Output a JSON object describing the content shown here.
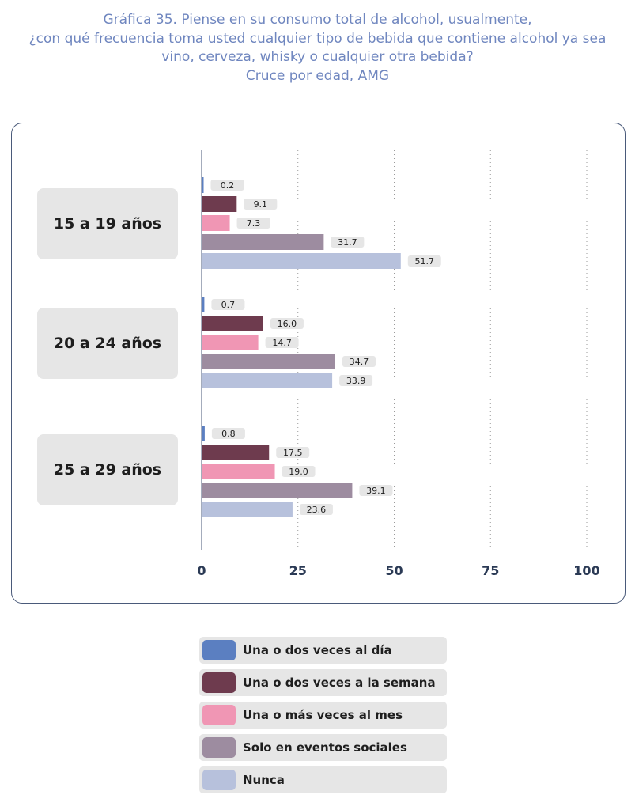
{
  "title_lines": [
    "Gráfica 35. Piense en su consumo total de alcohol, usualmente,",
    "¿con qué frecuencia toma usted cualquier tipo de bebida que contiene alcohol ya sea",
    "vino, cerveza, whisky o cualquier otra bebida?",
    "Cruce por edad, AMG"
  ],
  "chart_data": {
    "type": "bar",
    "orientation": "horizontal",
    "title": "Gráfica 35. Piense en su consumo total de alcohol, usualmente, ¿con qué frecuencia toma usted cualquier tipo de bebida que contiene alcohol ya sea vino, cerveza, whisky o cualquier otra bebida? Cruce por edad, AMG",
    "categories": [
      "15 a 19 años",
      "20 a 24 años",
      "25 a 29 años"
    ],
    "series": [
      {
        "name": "Una o dos veces al día",
        "color": "#5b7fc1",
        "values": [
          0.2,
          0.7,
          0.8
        ],
        "labels": [
          "0.2",
          "0.7",
          "0.8"
        ]
      },
      {
        "name": "Una o dos veces a la semana",
        "color": "#6e3b4e",
        "values": [
          9.1,
          16.0,
          17.5
        ],
        "labels": [
          "9.1",
          "16.0",
          "17.5"
        ]
      },
      {
        "name": "Una o más veces al mes",
        "color": "#f096b4",
        "values": [
          7.3,
          14.7,
          19.0
        ],
        "labels": [
          "7.3",
          "14.7",
          "19.0"
        ]
      },
      {
        "name": "Solo en eventos sociales",
        "color": "#9d8ca0",
        "values": [
          31.7,
          34.7,
          39.1
        ],
        "labels": [
          "31.7",
          "34.7",
          "39.1"
        ]
      },
      {
        "name": "Nunca",
        "color": "#b7c1dc",
        "values": [
          51.7,
          33.9,
          23.6
        ],
        "labels": [
          "51.7",
          "33.9",
          "23.6"
        ]
      }
    ],
    "xlim": [
      0,
      100
    ],
    "xticks": [
      "0",
      "25",
      "50",
      "75",
      "100"
    ],
    "grid": "vertical dotted",
    "legend_position": "bottom"
  }
}
